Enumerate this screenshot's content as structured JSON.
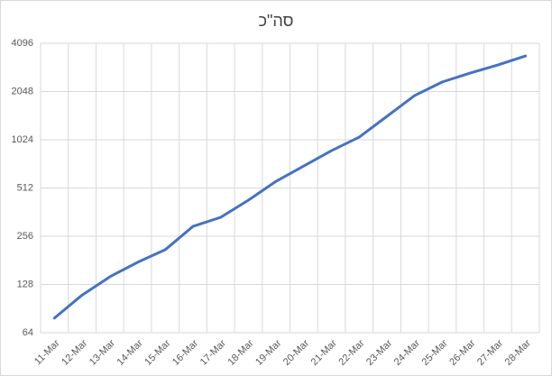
{
  "chart_data": {
    "type": "line",
    "title": "סה\"כ",
    "categories": [
      "11-Mar",
      "12-Mar",
      "13-Mar",
      "14-Mar",
      "15-Mar",
      "16-Mar",
      "17-Mar",
      "18-Mar",
      "19-Mar",
      "20-Mar",
      "21-Mar",
      "22-Mar",
      "23-Mar",
      "24-Mar",
      "25-Mar",
      "26-Mar",
      "27-Mar",
      "28-Mar"
    ],
    "series": [
      {
        "color": "#4472c4",
        "values": [
          79,
          110,
          143,
          176,
          211,
          295,
          336,
          430,
          564,
          703,
          876,
          1064,
          1434,
          1933,
          2350,
          2670,
          3000,
          3414
        ]
      }
    ],
    "ylim": [
      64,
      4096
    ],
    "yticks": [
      64,
      128,
      256,
      512,
      1024,
      2048,
      4096
    ],
    "yscale": "log",
    "grid": true
  }
}
